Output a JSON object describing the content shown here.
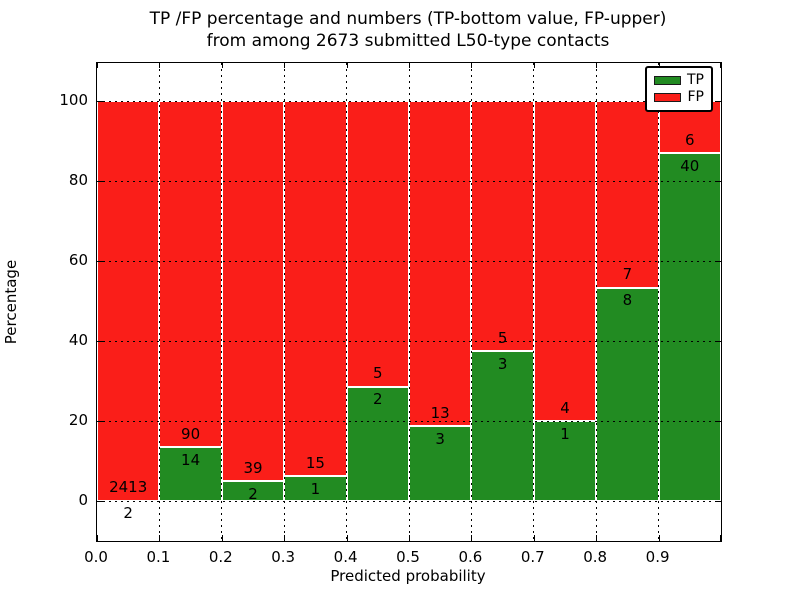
{
  "title_line1": "TP /FP percentage and numbers (TP-bottom value, FP-upper)",
  "title_line2": "from among 2673 submitted L50-type contacts",
  "colors": {
    "tp": "#228b22",
    "fp": "#fa1e19",
    "bar_edge": "#ffffff",
    "grid": "#000000"
  },
  "legend": {
    "items": [
      {
        "label": "TP",
        "color": "#228b22"
      },
      {
        "label": "FP",
        "color": "#fa1e19"
      }
    ]
  },
  "chart_data": {
    "type": "bar",
    "stacked": true,
    "normalized_to_percent": true,
    "title": "TP /FP percentage and numbers (TP-bottom value, FP-upper) from among 2673 submitted L50-type contacts",
    "xlabel": "Predicted probability",
    "ylabel": "Percentage",
    "total_contacts": 2673,
    "xlim": [
      0.0,
      1.0
    ],
    "ylim": [
      -10,
      110
    ],
    "x_tick_labels": [
      "0.0",
      "0.1",
      "0.2",
      "0.3",
      "0.4",
      "0.5",
      "0.6",
      "0.7",
      "0.8",
      "0.9"
    ],
    "y_tick_values": [
      0,
      20,
      40,
      60,
      80,
      100
    ],
    "grid": "dotted",
    "legend_position": "upper right",
    "series": [
      {
        "name": "TP",
        "color": "#228b22",
        "counts": [
          2,
          14,
          2,
          1,
          2,
          3,
          3,
          1,
          8,
          40
        ]
      },
      {
        "name": "FP",
        "color": "#fa1e19",
        "counts": [
          2413,
          90,
          39,
          15,
          5,
          13,
          5,
          4,
          7,
          6
        ]
      }
    ],
    "bins": [
      {
        "x0": 0.0,
        "x1": 0.1,
        "tp": 2,
        "fp": 2413,
        "tp_pct": 0.08
      },
      {
        "x0": 0.1,
        "x1": 0.2,
        "tp": 14,
        "fp": 90,
        "tp_pct": 13.46
      },
      {
        "x0": 0.2,
        "x1": 0.3,
        "tp": 2,
        "fp": 39,
        "tp_pct": 4.88
      },
      {
        "x0": 0.3,
        "x1": 0.4,
        "tp": 1,
        "fp": 15,
        "tp_pct": 6.25
      },
      {
        "x0": 0.4,
        "x1": 0.5,
        "tp": 2,
        "fp": 5,
        "tp_pct": 28.57
      },
      {
        "x0": 0.5,
        "x1": 0.6,
        "tp": 3,
        "fp": 13,
        "tp_pct": 18.75
      },
      {
        "x0": 0.6,
        "x1": 0.7,
        "tp": 3,
        "fp": 5,
        "tp_pct": 37.5
      },
      {
        "x0": 0.7,
        "x1": 0.8,
        "tp": 1,
        "fp": 4,
        "tp_pct": 20.0
      },
      {
        "x0": 0.8,
        "x1": 0.9,
        "tp": 8,
        "fp": 7,
        "tp_pct": 53.33
      },
      {
        "x0": 0.9,
        "x1": 1.0,
        "tp": 40,
        "fp": 6,
        "tp_pct": 86.96
      }
    ]
  }
}
